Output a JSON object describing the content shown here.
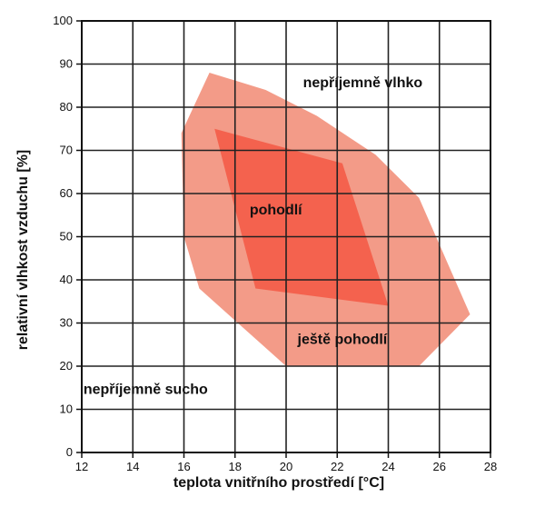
{
  "chart_data": {
    "type": "area",
    "xlabel": "teplota vnitřního prostředí [°C]",
    "ylabel": "relativní vlhkost vzduchu [%]",
    "xlim": [
      12,
      28
    ],
    "ylim": [
      0,
      100
    ],
    "xticks": [
      12,
      14,
      16,
      18,
      20,
      22,
      24,
      26,
      28
    ],
    "yticks": [
      0,
      10,
      20,
      30,
      40,
      50,
      60,
      70,
      80,
      90,
      100
    ],
    "grid": true,
    "regions": [
      {
        "name": "ještě pohodlí",
        "color": "#f39b88",
        "polygon": [
          [
            17.0,
            88.0
          ],
          [
            19.2,
            84.0
          ],
          [
            21.2,
            78.0
          ],
          [
            23.5,
            69.0
          ],
          [
            25.2,
            59.0
          ],
          [
            27.2,
            32.0
          ],
          [
            25.2,
            20.0
          ],
          [
            20.0,
            20.0
          ],
          [
            16.6,
            38.0
          ],
          [
            16.0,
            50.0
          ],
          [
            15.9,
            74.0
          ]
        ]
      },
      {
        "name": "pohodlí",
        "color": "#f4624e",
        "polygon": [
          [
            17.2,
            75.0
          ],
          [
            22.2,
            67.0
          ],
          [
            24.0,
            34.0
          ],
          [
            18.8,
            38.0
          ]
        ]
      }
    ],
    "annotations": [
      {
        "text": "nepříjemně vlhko",
        "x": 23.0,
        "y": 85.5
      },
      {
        "text": "pohodlí",
        "x": 19.6,
        "y": 56.0
      },
      {
        "text": "ještě pohodlí",
        "x": 22.2,
        "y": 26.0
      },
      {
        "text": "nepříjemně sucho",
        "x": 14.5,
        "y": 14.5
      }
    ],
    "colors": {
      "grid": "#222222",
      "axis": "#111111",
      "text": "#111111"
    }
  }
}
